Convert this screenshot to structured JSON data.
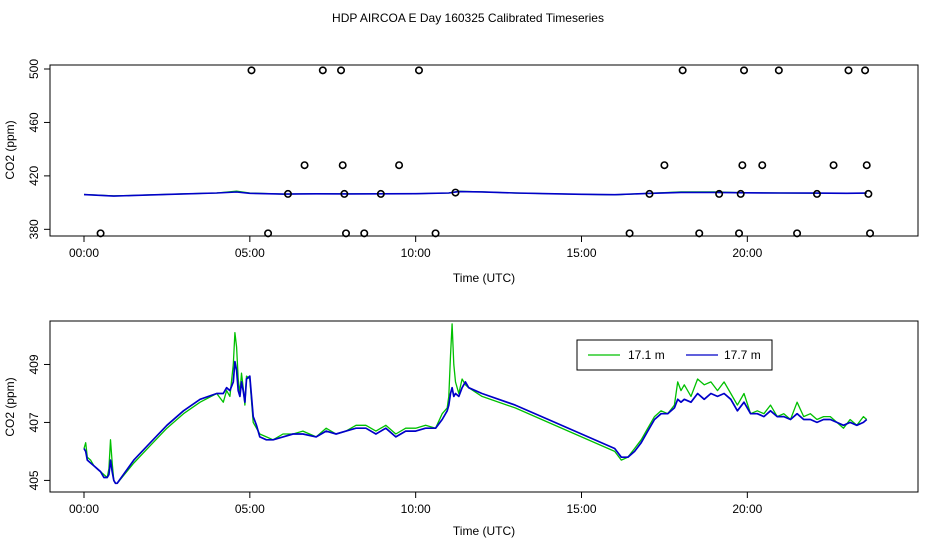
{
  "title": "HDP AIRCOA E  Day 160325  Calibrated Timeseries",
  "chart_data": [
    {
      "type": "line",
      "panel": "top",
      "xlabel": "Time (UTC)",
      "ylabel": "CO2 (ppm)",
      "xlim": [
        0,
        24
      ],
      "ylim": [
        375,
        503
      ],
      "xticks": [
        0,
        5,
        10,
        15,
        20
      ],
      "xtick_labels": [
        "00:00",
        "05:00",
        "10:00",
        "15:00",
        "20:00"
      ],
      "yticks": [
        380,
        420,
        460,
        500
      ],
      "ytick_labels": [
        "380",
        "420",
        "460",
        "500"
      ],
      "series": [
        {
          "color": "#00c000",
          "x": [
            0,
            0.9,
            2,
            3,
            4,
            4.6,
            5,
            6,
            7,
            8,
            9,
            10,
            11,
            11.3,
            12,
            13,
            14,
            15,
            16,
            17,
            18,
            19,
            20,
            21,
            22,
            23,
            23.6
          ],
          "y": [
            406.1,
            405,
            405.8,
            406.5,
            407.2,
            408.6,
            407.2,
            406.4,
            406.7,
            406.5,
            406.6,
            406.7,
            407.2,
            408.5,
            408,
            407.2,
            406.7,
            406.2,
            405.8,
            407,
            408,
            408,
            407.3,
            407.2,
            407.1,
            407,
            407.1
          ]
        },
        {
          "color": "#0000c8",
          "x": [
            0,
            0.9,
            2,
            3,
            4,
            4.6,
            5,
            6,
            7,
            8,
            9,
            10,
            11,
            11.3,
            12,
            13,
            14,
            15,
            16,
            17,
            18,
            19,
            20,
            21,
            22,
            23,
            23.6
          ],
          "y": [
            406,
            404.9,
            405.8,
            406.5,
            407.2,
            407.9,
            407,
            406.4,
            406.6,
            406.5,
            406.6,
            406.7,
            407.2,
            408.2,
            408,
            407.2,
            406.7,
            406.2,
            405.9,
            406.9,
            407.6,
            407.6,
            407.3,
            407.2,
            407.1,
            407,
            407.1
          ]
        }
      ],
      "calibration_points": {
        "x": [
          0.5,
          5.05,
          5.55,
          6.15,
          6.65,
          7.2,
          7.75,
          7.8,
          7.85,
          7.9,
          8.45,
          8.95,
          9.5,
          10.1,
          10.6,
          11.2,
          16.45,
          17.05,
          17.5,
          18.05,
          18.55,
          19.15,
          19.75,
          19.8,
          19.85,
          19.9,
          20.45,
          20.95,
          21.5,
          22.1,
          22.6,
          23.05,
          23.55,
          23.6,
          23.65,
          23.7
        ],
        "y": [
          377,
          499,
          377,
          406.5,
          428,
          499,
          499,
          428,
          406.5,
          377,
          377,
          406.5,
          428,
          499,
          377,
          407.5,
          377,
          406.5,
          428,
          499,
          377,
          406.5,
          377,
          406.5,
          428,
          499,
          428,
          499,
          377,
          406.5,
          428,
          499,
          499,
          428,
          406.5,
          377
        ]
      }
    },
    {
      "type": "line",
      "panel": "bottom",
      "xlabel": "Time (UTC)",
      "ylabel": "CO2 (ppm)",
      "xlim": [
        0,
        24
      ],
      "ylim": [
        404.6,
        410.5
      ],
      "xticks": [
        0,
        5,
        10,
        15,
        20
      ],
      "xtick_labels": [
        "00:00",
        "05:00",
        "10:00",
        "15:00",
        "20:00"
      ],
      "yticks": [
        405,
        407,
        409
      ],
      "ytick_labels": [
        "405",
        "407",
        "409"
      ],
      "legend_position": "top-right",
      "series": [
        {
          "name": "17.1 m",
          "color": "#00c000",
          "x": [
            0,
            0.05,
            0.1,
            0.2,
            0.3,
            0.4,
            0.5,
            0.6,
            0.7,
            0.75,
            0.8,
            0.85,
            0.9,
            0.95,
            1.0,
            1.5,
            2,
            2.5,
            3,
            3.5,
            4,
            4.2,
            4.3,
            4.4,
            4.5,
            4.55,
            4.6,
            4.65,
            4.7,
            4.75,
            4.8,
            4.85,
            4.9,
            5.0,
            5.1,
            5.2,
            5.3,
            5.5,
            5.7,
            6,
            6.3,
            6.6,
            7,
            7.3,
            7.6,
            7.9,
            8.2,
            8.5,
            8.8,
            9.1,
            9.4,
            9.7,
            10,
            10.3,
            10.6,
            10.8,
            10.95,
            11.0,
            11.05,
            11.1,
            11.15,
            11.2,
            11.3,
            11.4,
            11.5,
            11.6,
            12,
            13,
            14,
            15,
            16,
            16.2,
            16.4,
            16.6,
            16.8,
            17,
            17.2,
            17.4,
            17.6,
            17.8,
            17.9,
            18.0,
            18.1,
            18.3,
            18.5,
            18.7,
            18.9,
            19.1,
            19.3,
            19.5,
            19.7,
            19.9,
            20.1,
            20.3,
            20.5,
            20.7,
            20.9,
            21.1,
            21.3,
            21.5,
            21.7,
            21.9,
            22.1,
            22.3,
            22.5,
            22.7,
            22.9,
            23.1,
            23.3,
            23.5,
            23.6
          ],
          "y": [
            406.1,
            406.3,
            405.8,
            405.7,
            405.5,
            405.4,
            405.3,
            405.2,
            405.1,
            405.4,
            406.4,
            405.6,
            405.0,
            404.9,
            404.9,
            405.6,
            406.2,
            406.8,
            407.3,
            407.7,
            408.0,
            407.7,
            408.1,
            407.9,
            409.0,
            410.1,
            409.6,
            408.5,
            408.0,
            408.7,
            408.2,
            407.6,
            408.6,
            408.5,
            407.0,
            406.8,
            406.6,
            406.5,
            406.4,
            406.6,
            406.6,
            406.7,
            406.5,
            406.8,
            406.6,
            406.7,
            406.9,
            406.9,
            406.7,
            406.9,
            406.6,
            406.8,
            406.8,
            406.9,
            406.8,
            407.3,
            407.5,
            407.9,
            409.3,
            410.4,
            409.0,
            408.4,
            408.0,
            408.5,
            408.3,
            408.2,
            407.9,
            407.5,
            407.0,
            406.5,
            406.0,
            405.7,
            405.8,
            406.1,
            406.4,
            406.8,
            407.2,
            407.4,
            407.3,
            407.6,
            408.4,
            408.1,
            408.3,
            407.9,
            408.5,
            408.3,
            408.4,
            408.1,
            408.4,
            408.0,
            407.6,
            408.0,
            407.3,
            407.4,
            407.3,
            407.6,
            407.2,
            407.3,
            407.1,
            407.7,
            407.2,
            407.3,
            407.1,
            407.2,
            407.2,
            407.0,
            406.8,
            407.1,
            406.9,
            407.2,
            407.1
          ]
        },
        {
          "name": "17.7 m",
          "color": "#0000c8",
          "x": [
            0,
            0.05,
            0.1,
            0.2,
            0.3,
            0.4,
            0.5,
            0.6,
            0.7,
            0.75,
            0.8,
            0.85,
            0.9,
            0.95,
            1.0,
            1.5,
            2,
            2.5,
            3,
            3.5,
            4,
            4.2,
            4.3,
            4.4,
            4.5,
            4.55,
            4.6,
            4.65,
            4.7,
            4.75,
            4.8,
            4.85,
            4.9,
            5.0,
            5.1,
            5.2,
            5.3,
            5.5,
            5.7,
            6,
            6.3,
            6.6,
            7,
            7.3,
            7.6,
            7.9,
            8.2,
            8.5,
            8.8,
            9.1,
            9.4,
            9.7,
            10,
            10.3,
            10.6,
            10.8,
            10.95,
            11.0,
            11.05,
            11.1,
            11.15,
            11.2,
            11.3,
            11.4,
            11.5,
            11.6,
            12,
            13,
            14,
            15,
            16,
            16.2,
            16.4,
            16.6,
            16.8,
            17,
            17.2,
            17.4,
            17.6,
            17.8,
            17.9,
            18.0,
            18.1,
            18.3,
            18.5,
            18.7,
            18.9,
            19.1,
            19.3,
            19.5,
            19.7,
            19.9,
            20.1,
            20.3,
            20.5,
            20.7,
            20.9,
            21.1,
            21.3,
            21.5,
            21.7,
            21.9,
            22.1,
            22.3,
            22.5,
            22.7,
            22.9,
            23.1,
            23.3,
            23.5,
            23.6
          ],
          "y": [
            406.1,
            406.0,
            405.7,
            405.6,
            405.5,
            405.4,
            405.3,
            405.1,
            405.1,
            405.2,
            405.7,
            405.3,
            405.0,
            404.9,
            404.9,
            405.7,
            406.3,
            406.9,
            407.4,
            407.8,
            408.0,
            408.0,
            408.2,
            408.1,
            408.4,
            409.1,
            408.8,
            408.1,
            407.9,
            408.4,
            408.1,
            407.7,
            408.5,
            408.6,
            407.2,
            406.9,
            406.5,
            406.4,
            406.4,
            406.5,
            406.6,
            406.6,
            406.5,
            406.7,
            406.6,
            406.7,
            406.8,
            406.8,
            406.6,
            406.8,
            406.5,
            406.7,
            406.7,
            406.8,
            406.8,
            407.1,
            407.4,
            407.6,
            408.0,
            408.2,
            407.9,
            408.0,
            407.9,
            408.2,
            408.4,
            408.2,
            408.0,
            407.6,
            407.1,
            406.6,
            406.1,
            405.8,
            405.8,
            406.0,
            406.3,
            406.7,
            407.1,
            407.3,
            407.3,
            407.5,
            407.8,
            407.7,
            407.8,
            407.7,
            408.0,
            407.8,
            408.0,
            407.9,
            408.0,
            407.8,
            407.4,
            407.7,
            407.3,
            407.3,
            407.2,
            407.4,
            407.2,
            407.2,
            407.1,
            407.3,
            407.1,
            407.1,
            407.0,
            407.1,
            407.1,
            407.0,
            406.9,
            407.0,
            406.9,
            407.0,
            407.1
          ]
        }
      ]
    }
  ]
}
